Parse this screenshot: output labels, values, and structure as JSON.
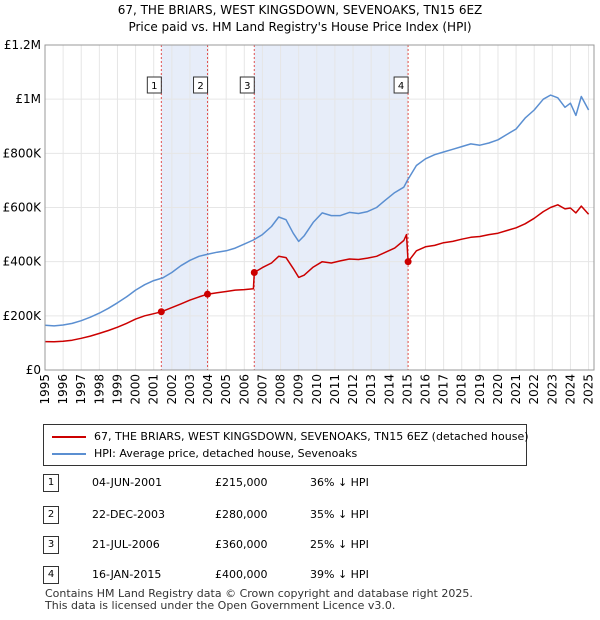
{
  "chart_data": {
    "type": "line",
    "title": "67, THE BRIARS, WEST KINGSDOWN, SEVENOAKS, TN15 6EZ",
    "subtitle": "Price paid vs. HM Land Registry's House Price Index (HPI)",
    "xlabel": "",
    "ylabel": "",
    "xlim": [
      1995,
      2025.3
    ],
    "ylim": [
      0,
      1200000
    ],
    "yticks": [
      0,
      200000,
      400000,
      600000,
      800000,
      1000000,
      1200000
    ],
    "ytick_labels": [
      "£0",
      "£200K",
      "£400K",
      "£600K",
      "£800K",
      "£1M",
      "£1.2M"
    ],
    "xticks": [
      1995,
      1996,
      1997,
      1998,
      1999,
      2000,
      2001,
      2002,
      2003,
      2004,
      2005,
      2006,
      2007,
      2008,
      2009,
      2010,
      2011,
      2012,
      2013,
      2014,
      2015,
      2016,
      2017,
      2018,
      2019,
      2020,
      2021,
      2022,
      2023,
      2024,
      2025
    ],
    "xtick_labels": [
      "1995",
      "1996",
      "1997",
      "1998",
      "1999",
      "2000",
      "2001",
      "2002",
      "2003",
      "2004",
      "2005",
      "2006",
      "2007",
      "2008",
      "2009",
      "2010",
      "2011",
      "2012",
      "2013",
      "2014",
      "2015",
      "2016",
      "2017",
      "2018",
      "2019",
      "2020",
      "2021",
      "2022",
      "2023",
      "2024",
      "2025"
    ],
    "grid": true,
    "shaded_ranges": [
      [
        2001.42,
        2003.97
      ],
      [
        2006.55,
        2015.04
      ]
    ],
    "series": [
      {
        "name": "67, THE BRIARS, WEST KINGSDOWN, SEVENOAKS, TN15 6EZ (detached house)",
        "color": "#cc0000",
        "x": [
          1995.0,
          1995.5,
          1996.0,
          1996.5,
          1997.0,
          1997.5,
          1998.0,
          1998.5,
          1999.0,
          1999.5,
          2000.0,
          2000.5,
          2001.0,
          2001.42,
          2001.9,
          2002.5,
          2003.0,
          2003.5,
          2003.97,
          2004.5,
          2005.0,
          2005.5,
          2006.0,
          2006.5,
          2006.55,
          2007.0,
          2007.5,
          2007.9,
          2008.3,
          2008.7,
          2009.0,
          2009.3,
          2009.8,
          2010.3,
          2010.8,
          2011.3,
          2011.8,
          2012.3,
          2012.8,
          2013.3,
          2013.8,
          2014.3,
          2014.8,
          2014.95,
          2015.04,
          2015.5,
          2016.0,
          2016.5,
          2017.0,
          2017.5,
          2018.0,
          2018.5,
          2019.0,
          2019.5,
          2020.0,
          2020.5,
          2021.0,
          2021.5,
          2022.0,
          2022.5,
          2022.9,
          2023.3,
          2023.7,
          2024.0,
          2024.3,
          2024.6,
          2025.0
        ],
        "values": [
          105000,
          104000,
          106000,
          110000,
          117000,
          125000,
          135000,
          146000,
          158000,
          172000,
          188000,
          200000,
          208000,
          215000,
          228000,
          244000,
          258000,
          270000,
          280000,
          285000,
          290000,
          295000,
          297000,
          300000,
          360000,
          378000,
          395000,
          420000,
          415000,
          375000,
          342000,
          350000,
          380000,
          400000,
          395000,
          403000,
          410000,
          408000,
          413000,
          420000,
          435000,
          450000,
          478000,
          500000,
          400000,
          440000,
          455000,
          460000,
          470000,
          475000,
          483000,
          490000,
          493000,
          500000,
          505000,
          515000,
          525000,
          540000,
          560000,
          585000,
          600000,
          610000,
          595000,
          598000,
          580000,
          605000,
          575000
        ]
      },
      {
        "name": "HPI: Average price, detached house, Sevenoaks",
        "color": "#5b8fd1",
        "x": [
          1995.0,
          1995.5,
          1996.0,
          1996.5,
          1997.0,
          1997.5,
          1998.0,
          1998.5,
          1999.0,
          1999.5,
          2000.0,
          2000.5,
          2001.0,
          2001.5,
          2002.0,
          2002.5,
          2003.0,
          2003.5,
          2004.0,
          2004.5,
          2005.0,
          2005.5,
          2006.0,
          2006.5,
          2007.0,
          2007.5,
          2007.9,
          2008.3,
          2008.7,
          2009.0,
          2009.3,
          2009.8,
          2010.3,
          2010.8,
          2011.3,
          2011.8,
          2012.3,
          2012.8,
          2013.3,
          2013.8,
          2014.3,
          2014.8,
          2015.0,
          2015.5,
          2016.0,
          2016.5,
          2017.0,
          2017.5,
          2018.0,
          2018.5,
          2019.0,
          2019.5,
          2020.0,
          2020.5,
          2021.0,
          2021.5,
          2022.0,
          2022.5,
          2022.9,
          2023.3,
          2023.7,
          2024.0,
          2024.3,
          2024.6,
          2025.0
        ],
        "values": [
          165000,
          163000,
          166000,
          172000,
          182000,
          195000,
          210000,
          228000,
          248000,
          270000,
          295000,
          315000,
          330000,
          340000,
          360000,
          385000,
          405000,
          420000,
          428000,
          435000,
          440000,
          450000,
          465000,
          480000,
          500000,
          530000,
          565000,
          555000,
          505000,
          475000,
          495000,
          545000,
          580000,
          570000,
          570000,
          582000,
          578000,
          585000,
          600000,
          628000,
          655000,
          675000,
          700000,
          755000,
          780000,
          795000,
          805000,
          815000,
          825000,
          835000,
          830000,
          838000,
          850000,
          870000,
          890000,
          930000,
          960000,
          1000000,
          1015000,
          1005000,
          970000,
          985000,
          940000,
          1010000,
          960000
        ]
      }
    ],
    "markers": [
      {
        "label": "1",
        "x": 2001.42,
        "y": 215000
      },
      {
        "label": "2",
        "x": 2003.97,
        "y": 280000
      },
      {
        "label": "3",
        "x": 2006.55,
        "y": 360000
      },
      {
        "label": "4",
        "x": 2015.04,
        "y": 400000
      }
    ]
  },
  "legend": {
    "property_label": "67, THE BRIARS, WEST KINGSDOWN, SEVENOAKS, TN15 6EZ (detached house)",
    "hpi_label": "HPI: Average price, detached house, Sevenoaks",
    "property_color": "#cc0000",
    "hpi_color": "#5b8fd1"
  },
  "sales": [
    {
      "num": "1",
      "date": "04-JUN-2001",
      "price": "£215,000",
      "hpi": "36% ↓ HPI"
    },
    {
      "num": "2",
      "date": "22-DEC-2003",
      "price": "£280,000",
      "hpi": "35% ↓ HPI"
    },
    {
      "num": "3",
      "date": "21-JUL-2006",
      "price": "£360,000",
      "hpi": "25% ↓ HPI"
    },
    {
      "num": "4",
      "date": "16-JAN-2015",
      "price": "£400,000",
      "hpi": "39% ↓ HPI"
    }
  ],
  "footer": {
    "line1": "Contains HM Land Registry data © Crown copyright and database right 2025.",
    "line2": "This data is licensed under the Open Government Licence v3.0."
  }
}
